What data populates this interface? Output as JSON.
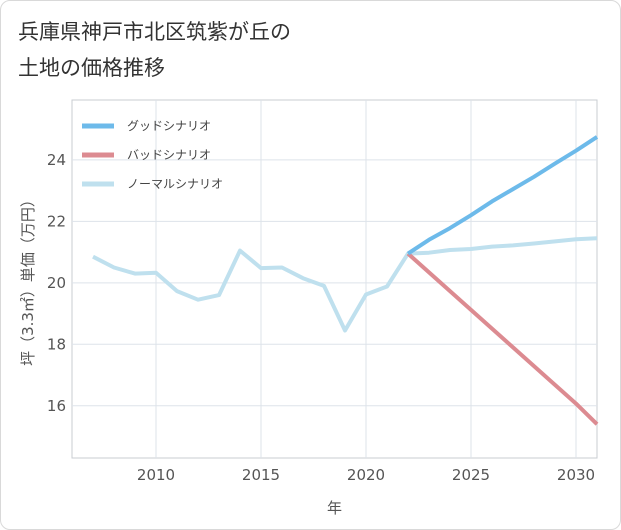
{
  "title_lines": [
    "兵庫県神戸市北区筑紫が丘の",
    "土地の価格推移"
  ],
  "chart_data": {
    "type": "line",
    "title": "兵庫県神戸市北区筑紫が丘の土地の価格推移",
    "xlabel": "年",
    "ylabel": "坪（3.3㎡）単価（万円）",
    "xlim": [
      2006,
      2031
    ],
    "ylim": [
      14.3,
      25.95
    ],
    "x_ticks": [
      2010,
      2015,
      2020,
      2025,
      2030
    ],
    "y_ticks": [
      16,
      18,
      20,
      22,
      24
    ],
    "grid": true,
    "legend_position": "top-left",
    "series": [
      {
        "name": "グッドシナリオ",
        "color": "#6dbaea",
        "x": [
          2022,
          2023,
          2024,
          2025,
          2026,
          2027,
          2028,
          2029,
          2030,
          2031
        ],
        "values": [
          20.95,
          21.4,
          21.78,
          22.2,
          22.65,
          23.05,
          23.45,
          23.88,
          24.3,
          24.75
        ]
      },
      {
        "name": "バッドシナリオ",
        "color": "#dc8b91",
        "x": [
          2022,
          2023,
          2024,
          2025,
          2026,
          2027,
          2028,
          2029,
          2030,
          2031
        ],
        "values": [
          20.95,
          20.34,
          19.73,
          19.12,
          18.51,
          17.9,
          17.29,
          16.68,
          16.07,
          15.4
        ]
      },
      {
        "name": "ノーマルシナリオ",
        "color": "#bfe0ee",
        "x": [
          2007,
          2008,
          2009,
          2010,
          2011,
          2012,
          2013,
          2014,
          2015,
          2016,
          2017,
          2018,
          2019,
          2020,
          2021,
          2022,
          2023,
          2024,
          2025,
          2026,
          2027,
          2028,
          2029,
          2030,
          2031
        ],
        "values": [
          20.85,
          20.5,
          20.3,
          20.33,
          19.73,
          19.45,
          19.6,
          21.05,
          20.48,
          20.5,
          20.15,
          19.9,
          18.45,
          19.62,
          19.88,
          20.95,
          20.98,
          21.07,
          21.1,
          21.18,
          21.22,
          21.28,
          21.35,
          21.42,
          21.45
        ]
      }
    ]
  }
}
